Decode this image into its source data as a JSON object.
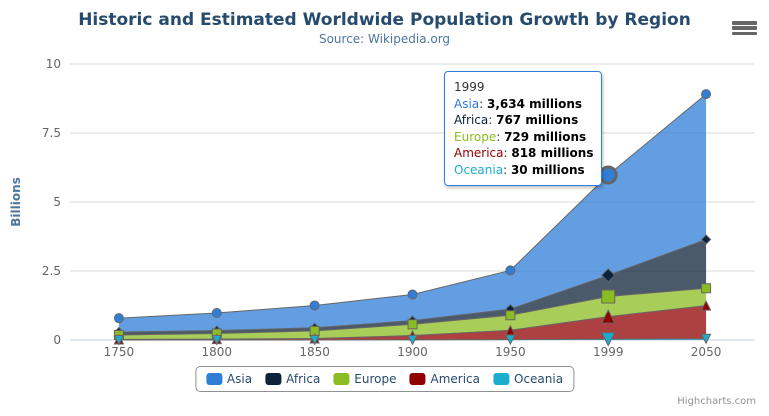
{
  "chart": {
    "title": "Historic and Estimated Worldwide Population Growth by Region",
    "subtitle": "Source: Wikipedia.org"
  },
  "colors": {
    "title_text": "#274b6d",
    "subtitle_text": "#4d759e",
    "axis_label": "#666666",
    "axis_line": "#C0D0E0",
    "grid_line": "#D8D8D8",
    "series_edge": "#666666",
    "legend_text": "#274b6d"
  },
  "chart_data": {
    "type": "area",
    "stacking": "normal",
    "title": "Historic and Estimated Worldwide Population Growth by Region",
    "subtitle": "Source: Wikipedia.org",
    "unit": "millions",
    "ylabel": "Billions",
    "ylim": [
      0,
      10
    ],
    "y_ticks": [
      "0",
      "2.5",
      "5",
      "7.5",
      "10"
    ],
    "grid": true,
    "legend_position": "bottom",
    "categories": [
      "1750",
      "1800",
      "1850",
      "1900",
      "1950",
      "1999",
      "2050"
    ],
    "series": [
      {
        "name": "Asia",
        "color": "#2f7ed8",
        "marker": "circle",
        "values": [
          502,
          635,
          809,
          947,
          1402,
          3634,
          5268
        ]
      },
      {
        "name": "Africa",
        "color": "#0d233a",
        "marker": "diamond",
        "values": [
          106,
          107,
          111,
          133,
          221,
          767,
          1766
        ]
      },
      {
        "name": "Europe",
        "color": "#8bbc21",
        "marker": "square",
        "values": [
          163,
          203,
          276,
          408,
          547,
          729,
          628
        ]
      },
      {
        "name": "America",
        "color": "#910000",
        "marker": "triangle",
        "values": [
          18,
          31,
          54,
          156,
          339,
          818,
          1201
        ]
      },
      {
        "name": "Oceania",
        "color": "#1aadce",
        "marker": "triangle-down",
        "values": [
          2,
          2,
          2,
          6,
          13,
          30,
          46
        ]
      }
    ],
    "fill_opacity": 0.75,
    "hover_category_index": 5
  },
  "y_axis": {
    "title": "Billions"
  },
  "tooltip": {
    "header": "1999",
    "rows": [
      {
        "name": "Asia",
        "color": "#2f7ed8",
        "value": "3,634 millions"
      },
      {
        "name": "Africa",
        "color": "#0d233a",
        "value": "767 millions"
      },
      {
        "name": "Europe",
        "color": "#8bbc21",
        "value": "729 millions"
      },
      {
        "name": "America",
        "color": "#910000",
        "value": "818 millions"
      },
      {
        "name": "Oceania",
        "color": "#1aadce",
        "value": "30 millions"
      }
    ]
  },
  "credits": "Highcharts.com"
}
